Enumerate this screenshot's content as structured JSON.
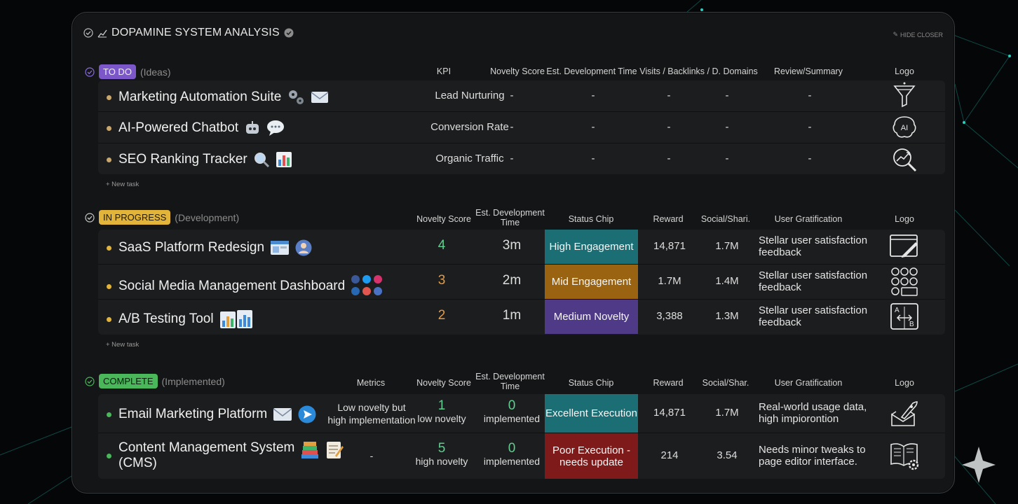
{
  "title": "DOPAMINE SYSTEM ANALYSIS",
  "hide_label": "HIDE CLOSER",
  "new_task_label": "+ New task",
  "todo": {
    "chip": "TO DO",
    "sub": "(Ideas)",
    "headers": [
      "KPI",
      "Novelty Score",
      "Est. Development Time",
      "Visits / Backlinks / D. Domains",
      "Review/Summary",
      "Logo"
    ],
    "rows": [
      {
        "name": "Marketing Automation Suite",
        "icons": [
          "gears-icon",
          "envelope-icon"
        ],
        "kpi": "Lead Nurturing",
        "novelty": "-",
        "time": "-",
        "v1": "-",
        "v2": "-",
        "review": "-",
        "logo": "funnel-icon"
      },
      {
        "name": "AI-Powered Chatbot",
        "icons": [
          "robot-icon",
          "speech-bubble-icon"
        ],
        "kpi": "Conversion Rate",
        "novelty": "-",
        "time": "-",
        "v1": "-",
        "v2": "-",
        "review": "-",
        "logo": "ai-brain-icon"
      },
      {
        "name": "SEO Ranking Tracker",
        "icons": [
          "magnifier-icon",
          "bar-chart-icon"
        ],
        "kpi": "Organic Traffic",
        "novelty": "-",
        "time": "-",
        "v1": "-",
        "v2": "-",
        "review": "-",
        "logo": "search-growth-icon"
      }
    ]
  },
  "progress": {
    "chip": "IN PROGRESS",
    "sub": "(Development)",
    "headers": [
      "Novelty Score",
      "Est. Development\nTime",
      "Status Chip",
      "Reward",
      "Social/Shari.",
      "User Gratification",
      "Logo"
    ],
    "rows": [
      {
        "name": "SaaS Platform Redesign",
        "icons": [
          "browser-window-icon",
          "user-avatar-icon"
        ],
        "novelty": "4",
        "novelty_color": "#5fcf8f",
        "time": "3m",
        "status": "High Engagement",
        "status_color": "#1a6e74",
        "reward": "14,871",
        "social": "1.7M",
        "grat": "Stellar user satisfaction feedback",
        "logo": "design-canvas-icon"
      },
      {
        "name": "Social Media Management Dashboard",
        "icons": [
          "social-cluster-icon"
        ],
        "novelty": "3",
        "novelty_color": "#e39a45",
        "time": "2m",
        "status": "Mid Engagement",
        "status_color": "#9a6311",
        "reward": "1.7M",
        "social": "1.4M",
        "grat": "Stellar user satisfaction feedback",
        "logo": "social-grid-icon"
      },
      {
        "name": "A/B Testing Tool",
        "icons": [
          "ab-charts-icon"
        ],
        "novelty": "2",
        "novelty_color": "#e39a45",
        "time": "1m",
        "status": "Medium Novelty",
        "status_color": "#4e3a86",
        "reward": "3,388",
        "social": "1.3M",
        "grat": "Stellar user satisfaction feedback",
        "logo": "ab-test-icon"
      }
    ]
  },
  "complete": {
    "chip": "COMPLETE",
    "sub": "(Implemented)",
    "headers": [
      "Metrics",
      "Novelty Score",
      "Est. Development\nTime",
      "Status Chip",
      "Reward",
      "Social/Shar.",
      "User Gratification",
      "Logo"
    ],
    "rows": [
      {
        "name": "Email Marketing Platform",
        "icons": [
          "envelope-icon",
          "send-icon"
        ],
        "metrics": "Low novelty but\nhigh implementation",
        "novelty": "1",
        "novelty_sub": "low novelty",
        "time": "0",
        "time_sub": "implemented",
        "status": "Excellent Execution",
        "status_color": "#1a6e74",
        "reward": "14,871",
        "social": "1.7M",
        "grat": "Real-world usage data,\nhigh impiorontion",
        "logo": "rocket-mail-icon"
      },
      {
        "name": "Content Management System\n(CMS)",
        "icons": [
          "books-icon",
          "memo-icon"
        ],
        "metrics": "-",
        "novelty": "5",
        "novelty_sub": "high novelty",
        "time": "0",
        "time_sub": "implemented",
        "status": "Poor Execution -\nneeds update",
        "status_color": "#7e1a1a",
        "reward": "214",
        "social": "3.54",
        "grat": "Needs minor tweaks to\npage editor interface.",
        "logo": "book-gear-icon"
      }
    ]
  }
}
